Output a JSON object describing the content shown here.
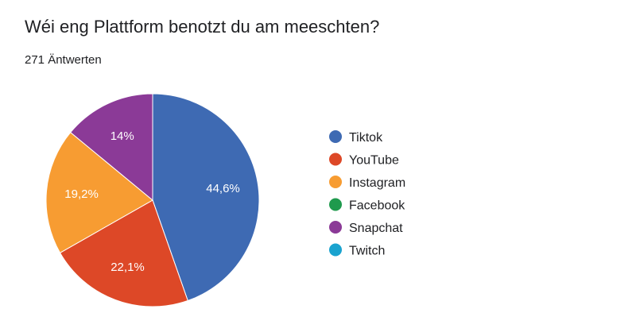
{
  "header": {
    "title": "Wéi eng Plattform benotzt du am meeschten?",
    "responses": "271 Äntwerten"
  },
  "chart_data": {
    "type": "pie",
    "title": "Wéi eng Plattform benotzt du am meeschten?",
    "subtitle": "271 Äntwerten",
    "legend_position": "right",
    "start_angle_deg": 90,
    "direction": "clockwise",
    "slices": [
      {
        "name": "Tiktok",
        "value": 44.6,
        "label": "44,6%",
        "color": "#3e6ab3"
      },
      {
        "name": "YouTube",
        "value": 22.1,
        "label": "22,1%",
        "color": "#dd4827"
      },
      {
        "name": "Instagram",
        "value": 19.2,
        "label": "19,2%",
        "color": "#f79c32"
      },
      {
        "name": "Facebook",
        "value": 0,
        "label": "",
        "color": "#1f9a4d"
      },
      {
        "name": "Snapchat",
        "value": 14.0,
        "label": "14%",
        "color": "#8b3a97"
      },
      {
        "name": "Twitch",
        "value": 0,
        "label": "",
        "color": "#1aa3cf"
      }
    ]
  }
}
